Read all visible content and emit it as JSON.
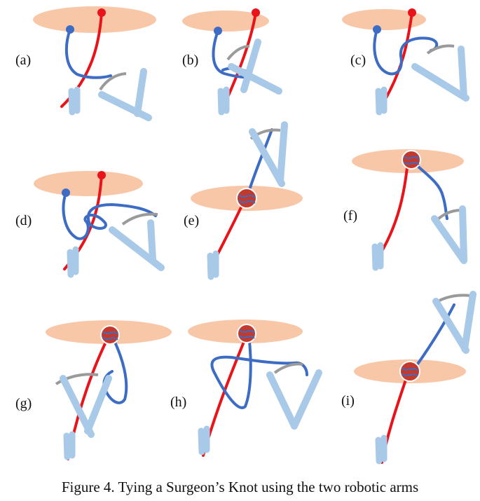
{
  "panels": [
    {
      "label": "(a)"
    },
    {
      "label": "(b)"
    },
    {
      "label": "(c)"
    },
    {
      "label": "(d)"
    },
    {
      "label": "(e)"
    },
    {
      "label": "(f)"
    },
    {
      "label": "(g)"
    },
    {
      "label": "(h)"
    },
    {
      "label": "(i)"
    }
  ],
  "caption": "Figure 4. Tying a Surgeon’s Knot using the two robotic arms",
  "colors": {
    "ring": "#f8c7a8",
    "red_thread": "#e8141a",
    "blue_thread": "#3d6cc4",
    "blue_thread_dark": "#2a4f9a",
    "arm": "#a9c9e8",
    "grey_needle": "#9a9a9a",
    "knot": "#c23a2e"
  }
}
